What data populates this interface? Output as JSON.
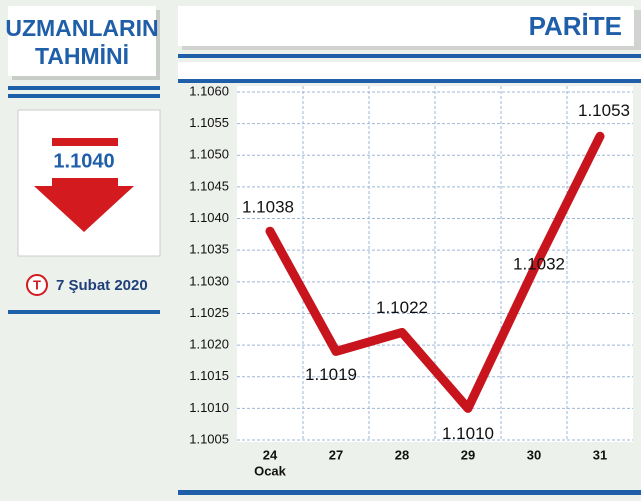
{
  "forecast": {
    "title_lines": [
      "UZMANLARIN",
      "TAHMİNİ"
    ],
    "value": "1.1040",
    "logo": "T",
    "date": "7 Şubat 2020"
  },
  "chart_data": {
    "type": "line",
    "title": "PARİTE",
    "categories": [
      "24",
      "27",
      "28",
      "29",
      "30",
      "31"
    ],
    "month_label": "Ocak",
    "values": [
      1.1038,
      1.1019,
      1.1022,
      1.101,
      1.1032,
      1.1053
    ],
    "value_labels": [
      "1.1038",
      "1.1019",
      "1.1022",
      "1.1010",
      "1.1032",
      "1.1053"
    ],
    "color": "#c8141c",
    "ylim": [
      1.1005,
      1.106
    ],
    "yticks": [
      1.1005,
      {
        "value": 1.101,
        "label": "1.1010"
      },
      1.1015,
      {
        "value": 1.102,
        "label": "1.1020"
      },
      1.1025,
      {
        "value": 1.103,
        "label": "1.1030"
      },
      1.1035,
      {
        "value": 1.104,
        "label": "1.1040"
      },
      1.1045,
      {
        "value": 1.105,
        "label": "1.1050"
      },
      1.1055,
      {
        "value": 1.106,
        "label": "1.1060"
      }
    ],
    "grid": true
  }
}
